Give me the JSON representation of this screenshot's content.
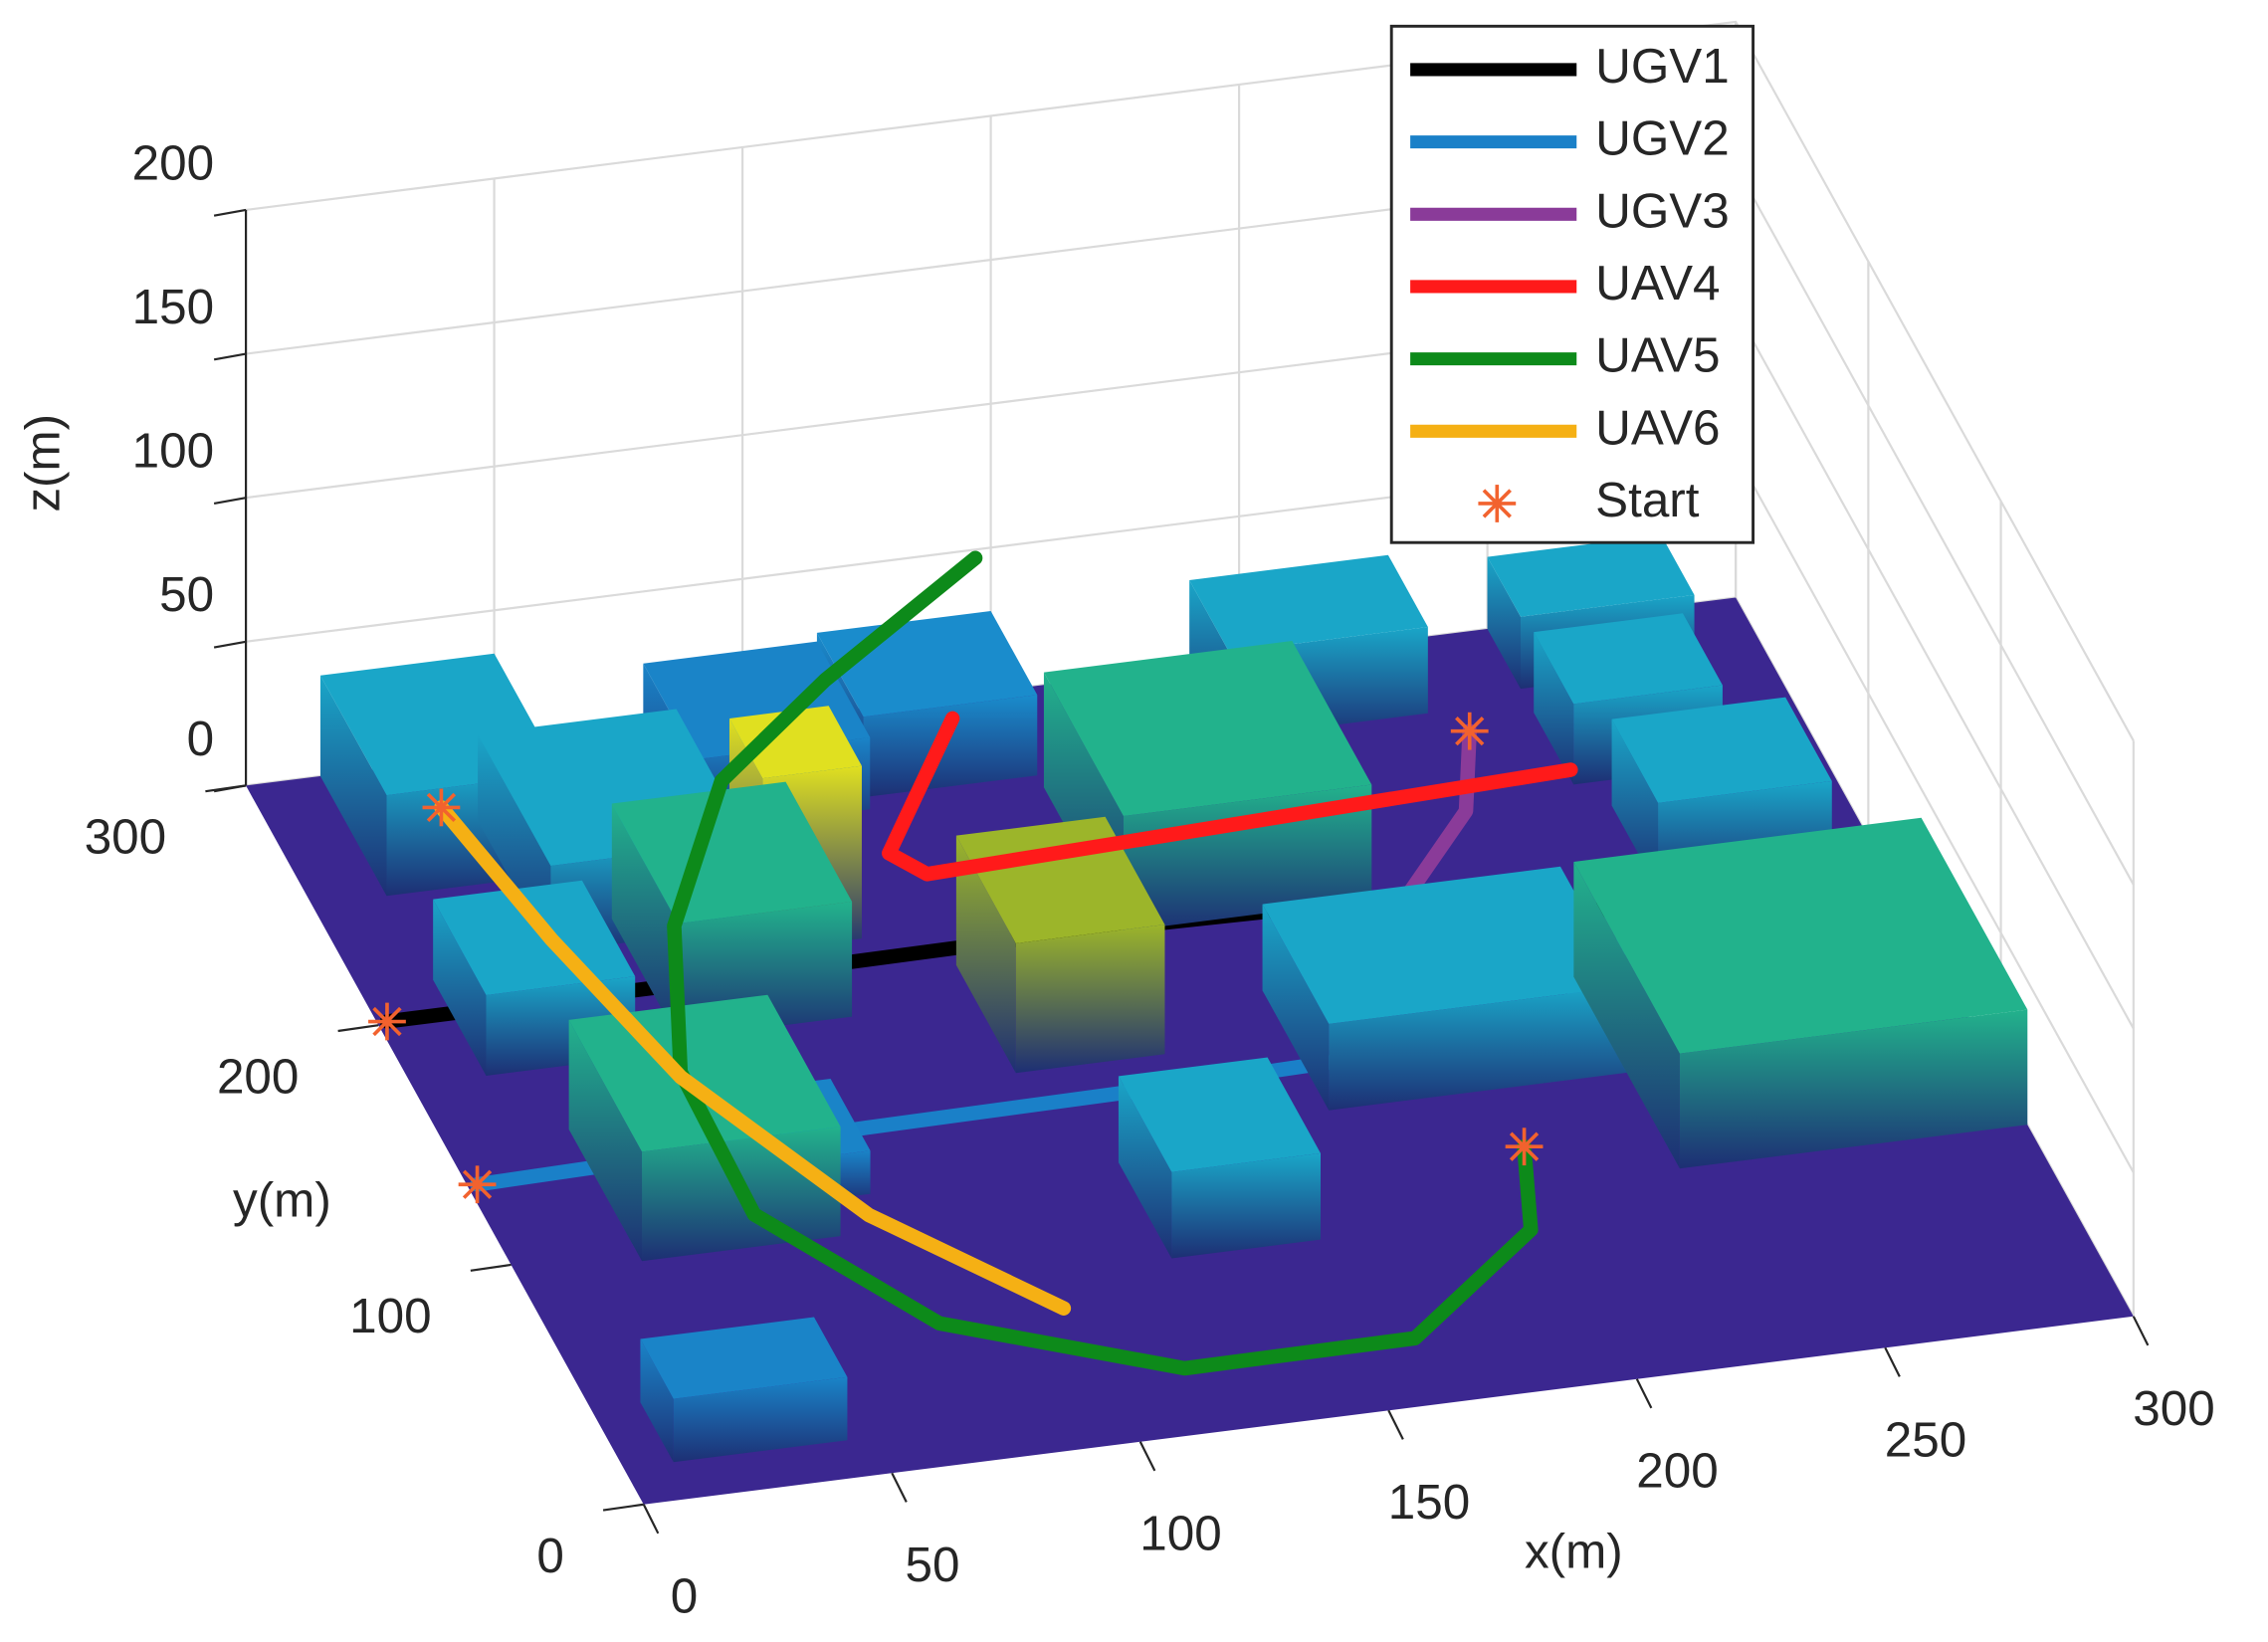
{
  "chart_data": {
    "type": "line3d",
    "xlabel": "x(m)",
    "ylabel": "y(m)",
    "zlabel": "z(m)",
    "xlim": [
      0,
      300
    ],
    "ylim": [
      0,
      300
    ],
    "zlim": [
      0,
      200
    ],
    "xticks": [
      0,
      50,
      100,
      150,
      200,
      250,
      300
    ],
    "yticks": [
      0,
      100,
      200,
      300
    ],
    "zticks": [
      0,
      50,
      100,
      150,
      200
    ],
    "grid": true,
    "legend": "northeast",
    "series": [
      {
        "name": "UGV1",
        "color": "#000000",
        "x": [
          2,
          61,
          140,
          195,
          214,
          247
        ],
        "y": [
          201,
          201,
          202,
          200,
          195,
          183
        ],
        "z": [
          0,
          0,
          0,
          0,
          0,
          0
        ]
      },
      {
        "name": "UGV2",
        "color": "#1a80c8",
        "x": [
          2,
          81,
          134,
          184,
          217,
          238,
          247
        ],
        "y": [
          133,
          136,
          137,
          139,
          142,
          161,
          180
        ],
        "z": [
          0,
          0,
          0,
          0,
          0,
          0,
          0
        ]
      },
      {
        "name": "UGV3",
        "color": "#8a3b99",
        "x": [
          236,
          227,
          200,
          181
        ],
        "y": [
          261,
          230,
          189,
          170
        ],
        "z": [
          0,
          0,
          0,
          0
        ]
      },
      {
        "name": "UAV4",
        "color": "#ff1a1a",
        "x": [
          122,
          102,
          107,
          239
        ],
        "y": [
          224,
          197,
          187,
          196
        ],
        "z": [
          60,
          40,
          40,
          40
        ]
      },
      {
        "name": "UAV5",
        "color": "#0d8a1a",
        "x": [
          200,
          192,
          158,
          110,
          67,
          42,
          40,
          51,
          72,
          99,
          137
        ],
        "y": [
          85,
          50,
          10,
          4,
          28,
          74,
          122,
          168,
          211,
          234,
          263
        ],
        "z": [
          10,
          12,
          15,
          20,
          25,
          30,
          40,
          50,
          60,
          70,
          80
        ]
      },
      {
        "name": "UAV6",
        "color": "#f5b014",
        "x": [
          30,
          37,
          47,
          68,
          95
        ],
        "y": [
          265,
          208,
          148,
          85,
          39
        ],
        "z": [
          15,
          15,
          15,
          15,
          15
        ]
      },
      {
        "name": "Start",
        "color": "#f2622e",
        "marker": "*",
        "x": [
          2,
          2,
          236,
          200,
          30
        ],
        "y": [
          201,
          133,
          261,
          85,
          265
        ],
        "z": [
          0,
          0,
          0,
          10,
          15
        ]
      }
    ],
    "buildings": [
      {
        "x": [
          10,
          45
        ],
        "y": [
          15,
          40
        ],
        "z": 22,
        "color": "#1a84c8"
      },
      {
        "x": [
          15,
          50
        ],
        "y": [
          250,
          300
        ],
        "z": 35,
        "color": "#1aa6c8"
      },
      {
        "x": [
          40,
          80
        ],
        "y": [
          220,
          275
        ],
        "z": 30,
        "color": "#1aa6c8"
      },
      {
        "x": [
          15,
          45
        ],
        "y": [
          175,
          215
        ],
        "z": 28,
        "color": "#1aa6c8"
      },
      {
        "x": [
          25,
          65
        ],
        "y": [
          95,
          150
        ],
        "z": 38,
        "color": "#22b28c"
      },
      {
        "x": [
          60,
          75
        ],
        "y": [
          110,
          140
        ],
        "z": 15,
        "color": "#1a84c8"
      },
      {
        "x": [
          55,
          90
        ],
        "y": [
          180,
          230
        ],
        "z": 40,
        "color": "#22b28c"
      },
      {
        "x": [
          80,
          100
        ],
        "y": [
          210,
          235
        ],
        "z": 60,
        "color": "#e0e020"
      },
      {
        "x": [
          80,
          115
        ],
        "y": [
          260,
          300
        ],
        "z": 25,
        "color": "#1a84c8"
      },
      {
        "x": [
          115,
          150
        ],
        "y": [
          265,
          300
        ],
        "z": 28,
        "color": "#1a8ccc"
      },
      {
        "x": [
          115,
          145
        ],
        "y": [
          150,
          195
        ],
        "z": 45,
        "color": "#9cb52a"
      },
      {
        "x": [
          125,
          155
        ],
        "y": [
          70,
          110
        ],
        "z": 30,
        "color": "#1aa6c8"
      },
      {
        "x": [
          150,
          200
        ],
        "y": [
          200,
          260
        ],
        "z": 40,
        "color": "#22b28c"
      },
      {
        "x": [
          170,
          230
        ],
        "y": [
          120,
          170
        ],
        "z": 30,
        "color": "#1aa6c8"
      },
      {
        "x": [
          190,
          230
        ],
        "y": [
          270,
          300
        ],
        "z": 30,
        "color": "#1aa6c8"
      },
      {
        "x": [
          250,
          285
        ],
        "y": [
          275,
          300
        ],
        "z": 25,
        "color": "#1aa6c8"
      },
      {
        "x": [
          250,
          280
        ],
        "y": [
          235,
          265
        ],
        "z": 28,
        "color": "#1aa6c8"
      },
      {
        "x": [
          255,
          290
        ],
        "y": [
          190,
          225
        ],
        "z": 30,
        "color": "#1aa6c8"
      },
      {
        "x": [
          230,
          300
        ],
        "y": [
          80,
          160
        ],
        "z": 40,
        "color": "#22b28c"
      }
    ]
  }
}
